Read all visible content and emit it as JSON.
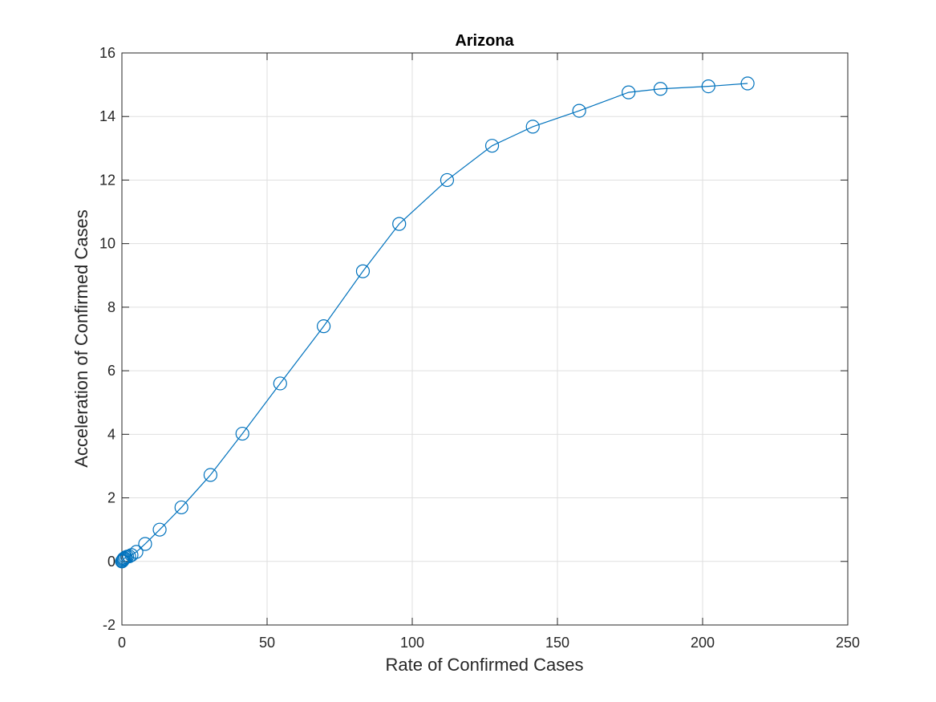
{
  "colors": {
    "series": "#0072BD",
    "grid": "#DFDFDF",
    "axis": "#262626",
    "background": "#FFFFFF"
  },
  "chart_data": {
    "type": "line",
    "title": "Arizona",
    "xlabel": "Rate of Confirmed Cases",
    "ylabel": "Acceleration of Confirmed Cases",
    "xlim": [
      0,
      250
    ],
    "ylim": [
      -2,
      16
    ],
    "xticks": [
      0,
      50,
      100,
      150,
      200,
      250
    ],
    "yticks": [
      -2,
      0,
      2,
      4,
      6,
      8,
      10,
      12,
      14,
      16
    ],
    "xtick_labels": [
      "0",
      "50",
      "100",
      "150",
      "200",
      "250"
    ],
    "ytick_labels": [
      "-2",
      "0",
      "2",
      "4",
      "6",
      "8",
      "10",
      "12",
      "14",
      "16"
    ],
    "grid": true,
    "marker": "circle",
    "series": [
      {
        "x": [
          0,
          0.2,
          0.4,
          0.6,
          0.9,
          1.3,
          1.8,
          2.5,
          3.3,
          5,
          8,
          13,
          20.5,
          30.5,
          41.5,
          54.5,
          69.5,
          83,
          95.5,
          112,
          127.5,
          141.5,
          157.5,
          174.5,
          185.5,
          202,
          215.5
        ],
        "y": [
          0,
          0.02,
          0.05,
          0.08,
          0.1,
          0.13,
          0.15,
          0.16,
          0.2,
          0.3,
          0.55,
          1.0,
          1.7,
          2.72,
          4.02,
          5.6,
          7.4,
          9.13,
          10.62,
          12.0,
          13.08,
          13.68,
          14.18,
          14.76,
          14.87,
          14.95,
          15.04
        ]
      }
    ]
  }
}
